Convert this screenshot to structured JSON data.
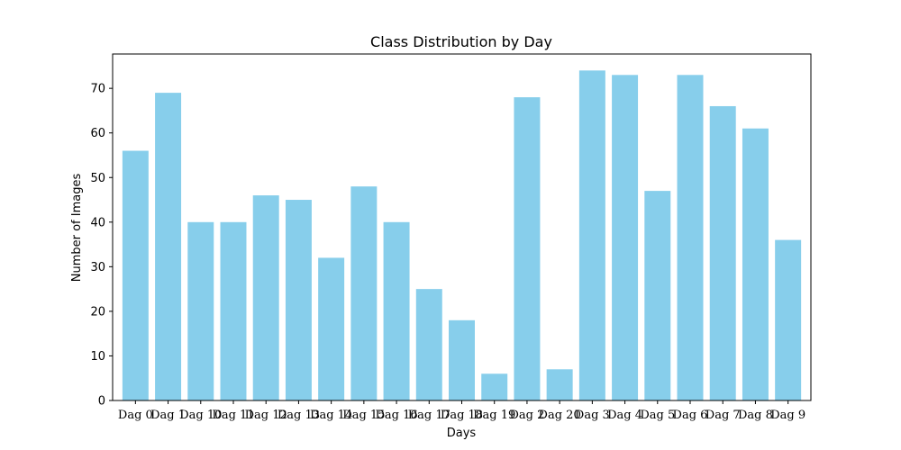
{
  "chart_data": {
    "type": "bar",
    "title": "Class Distribution by Day",
    "xlabel": "Days",
    "ylabel": "Number of Images",
    "categories": [
      "Dag 0",
      "Dag 1",
      "Dag 10",
      "Dag 11",
      "Dag 12",
      "Dag 13",
      "Dag 14",
      "Dag 15",
      "Dag 16",
      "Dag 17",
      "Dag 18",
      "Dag 19",
      "Dag 2",
      "Dag 20",
      "Dag 3",
      "Dag 4",
      "Dag 5",
      "Dag 6",
      "Dag 7",
      "Dag 8",
      "Dag 9"
    ],
    "values": [
      56,
      69,
      40,
      40,
      46,
      45,
      32,
      48,
      40,
      25,
      18,
      6,
      68,
      7,
      74,
      73,
      47,
      73,
      66,
      61,
      36
    ],
    "ylim": [
      0,
      77.7
    ],
    "yticks": [
      0,
      10,
      20,
      30,
      40,
      50,
      60,
      70
    ],
    "grid": false,
    "colors": {
      "bar": "#87ceeb",
      "axis": "#000000"
    }
  }
}
